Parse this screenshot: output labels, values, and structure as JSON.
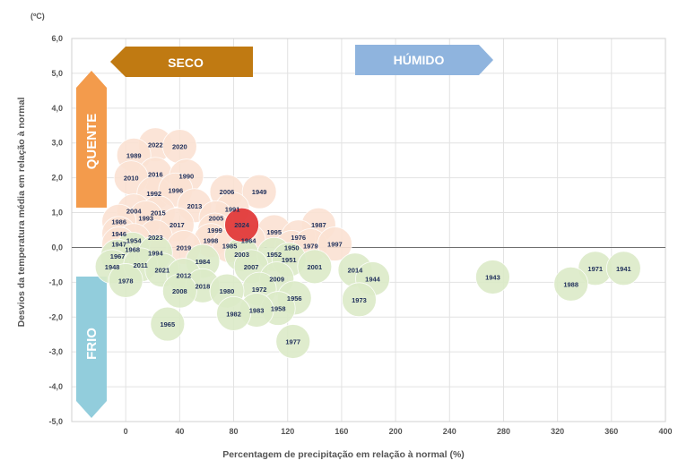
{
  "chart_data": {
    "type": "scatter",
    "unit_label": "(ºC)",
    "xlabel": "Percentagem de precipitação em relação à normal (%)",
    "ylabel": "Desvios da temperatura média em relação à normal",
    "xlim": [
      -40,
      400
    ],
    "ylim": [
      -5.0,
      6.0
    ],
    "x_ticks": [
      0,
      40,
      80,
      120,
      160,
      200,
      240,
      280,
      320,
      360,
      400
    ],
    "y_ticks": [
      "6,0",
      "5,0",
      "4,0",
      "3,0",
      "2,0",
      "1,0",
      "0,0",
      "-1,0",
      "-2,0",
      "-3,0",
      "-4,0",
      "-5,0"
    ],
    "y_tick_values": [
      6,
      5,
      4,
      3,
      2,
      1,
      0,
      -1,
      -2,
      -3,
      -4,
      -5
    ],
    "banners": {
      "dry": "SECO",
      "wet": "HÚMIDO",
      "hot": "QUENTE",
      "cold": "FRIO"
    },
    "colors": {
      "warm": "#fbe2d3",
      "cold": "#dcebc8",
      "highlight": "#e23b3b",
      "seco": "#c07a12",
      "humido": "#8fb4de",
      "quente": "#f39b4c",
      "frio": "#92cddc"
    },
    "points": [
      {
        "year": "2022",
        "x": 22,
        "y": 2.95
      },
      {
        "year": "2020",
        "x": 40,
        "y": 2.9
      },
      {
        "year": "1989",
        "x": 6,
        "y": 2.65
      },
      {
        "year": "2016",
        "x": 22,
        "y": 2.1
      },
      {
        "year": "2010",
        "x": 4,
        "y": 2.0
      },
      {
        "year": "1990",
        "x": 45,
        "y": 2.05
      },
      {
        "year": "1992",
        "x": 21,
        "y": 1.55
      },
      {
        "year": "1996",
        "x": 37,
        "y": 1.65
      },
      {
        "year": "2006",
        "x": 75,
        "y": 1.6
      },
      {
        "year": "1949",
        "x": 99,
        "y": 1.6
      },
      {
        "year": "2013",
        "x": 51,
        "y": 1.2
      },
      {
        "year": "1991",
        "x": 79,
        "y": 1.1
      },
      {
        "year": "2004",
        "x": 6,
        "y": 1.05
      },
      {
        "year": "2015",
        "x": 24,
        "y": 1.0
      },
      {
        "year": "1993",
        "x": 15,
        "y": 0.85
      },
      {
        "year": "2005",
        "x": 67,
        "y": 0.85
      },
      {
        "year": "1986",
        "x": -5,
        "y": 0.75
      },
      {
        "year": "2017",
        "x": 38,
        "y": 0.65
      },
      {
        "year": "1999",
        "x": 66,
        "y": 0.5
      },
      {
        "year": "2024",
        "x": 86,
        "y": 0.65,
        "highlight": true
      },
      {
        "year": "1995",
        "x": 110,
        "y": 0.45
      },
      {
        "year": "1987",
        "x": 143,
        "y": 0.65
      },
      {
        "year": "1946",
        "x": -5,
        "y": 0.4
      },
      {
        "year": "2023",
        "x": 22,
        "y": 0.3
      },
      {
        "year": "1998",
        "x": 63,
        "y": 0.2
      },
      {
        "year": "1976",
        "x": 128,
        "y": 0.3
      },
      {
        "year": "1964",
        "x": 91,
        "y": 0.2
      },
      {
        "year": "1954",
        "x": 6,
        "y": 0.2
      },
      {
        "year": "1947",
        "x": -5,
        "y": 0.1
      },
      {
        "year": "2019",
        "x": 43,
        "y": 0.0
      },
      {
        "year": "1985",
        "x": 77,
        "y": 0.05
      },
      {
        "year": "1950",
        "x": 123,
        "y": 0.0
      },
      {
        "year": "1979",
        "x": 137,
        "y": 0.05
      },
      {
        "year": "1997",
        "x": 155,
        "y": 0.1
      },
      {
        "year": "1968",
        "x": 5,
        "y": -0.05
      },
      {
        "year": "1994",
        "x": 22,
        "y": -0.15
      },
      {
        "year": "2003",
        "x": 86,
        "y": -0.2
      },
      {
        "year": "1952",
        "x": 110,
        "y": -0.2
      },
      {
        "year": "1967",
        "x": -6,
        "y": -0.25
      },
      {
        "year": "1984",
        "x": 57,
        "y": -0.4
      },
      {
        "year": "1951",
        "x": 121,
        "y": -0.35
      },
      {
        "year": "1948",
        "x": -10,
        "y": -0.55
      },
      {
        "year": "2011",
        "x": 11,
        "y": -0.5
      },
      {
        "year": "2021",
        "x": 27,
        "y": -0.65
      },
      {
        "year": "2007",
        "x": 93,
        "y": -0.55
      },
      {
        "year": "2001",
        "x": 140,
        "y": -0.55
      },
      {
        "year": "2014",
        "x": 170,
        "y": -0.65
      },
      {
        "year": "2012",
        "x": 43,
        "y": -0.8
      },
      {
        "year": "1978",
        "x": 0,
        "y": -0.95
      },
      {
        "year": "2009",
        "x": 112,
        "y": -0.9
      },
      {
        "year": "1944",
        "x": 183,
        "y": -0.9
      },
      {
        "year": "1943",
        "x": 272,
        "y": -0.85
      },
      {
        "year": "1971",
        "x": 348,
        "y": -0.6
      },
      {
        "year": "1941",
        "x": 369,
        "y": -0.6
      },
      {
        "year": "1988",
        "x": 330,
        "y": -1.05
      },
      {
        "year": "2018",
        "x": 57,
        "y": -1.1
      },
      {
        "year": "1972",
        "x": 99,
        "y": -1.2
      },
      {
        "year": "2008",
        "x": 40,
        "y": -1.25
      },
      {
        "year": "1980",
        "x": 75,
        "y": -1.25
      },
      {
        "year": "1956",
        "x": 125,
        "y": -1.45
      },
      {
        "year": "1973",
        "x": 173,
        "y": -1.5
      },
      {
        "year": "1958",
        "x": 113,
        "y": -1.75
      },
      {
        "year": "1983",
        "x": 97,
        "y": -1.8
      },
      {
        "year": "1982",
        "x": 80,
        "y": -1.9
      },
      {
        "year": "1965",
        "x": 31,
        "y": -2.2
      },
      {
        "year": "1977",
        "x": 124,
        "y": -2.7
      }
    ]
  }
}
